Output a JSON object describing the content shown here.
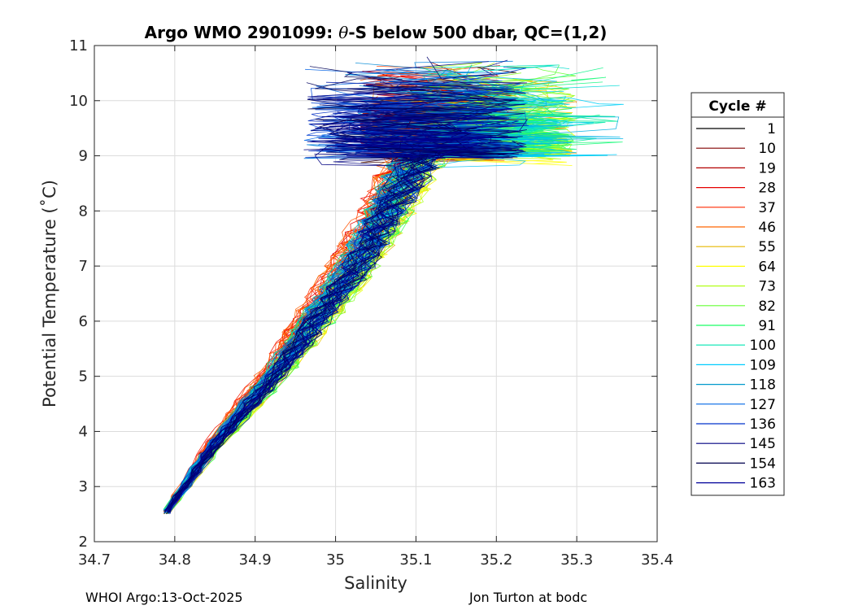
{
  "chart_data": {
    "type": "line",
    "title_prefix": "Argo WMO 2901099: ",
    "title_theta": "θ",
    "title_suffix": "-S below 500 dbar,  QC=(1,2)",
    "xlabel": "Salinity",
    "ylabel": "Potential Temperature (˚C)",
    "xlim": [
      34.7,
      35.4
    ],
    "ylim": [
      2,
      11
    ],
    "xticks": [
      34.7,
      34.8,
      34.9,
      35,
      35.1,
      35.2,
      35.3,
      35.4
    ],
    "xtick_labels": [
      "34.7",
      "34.8",
      "34.9",
      "35",
      "35.1",
      "35.2",
      "35.3",
      "35.4"
    ],
    "yticks": [
      2,
      3,
      4,
      5,
      6,
      7,
      8,
      9,
      10,
      11
    ],
    "ytick_labels": [
      "2",
      "3",
      "4",
      "5",
      "6",
      "7",
      "8",
      "9",
      "10",
      "11"
    ],
    "grid": true,
    "legend": {
      "title": "Cycle #",
      "placement": "right",
      "entries": [
        {
          "label": "1",
          "color": "#000000"
        },
        {
          "label": "10",
          "color": "#800000"
        },
        {
          "label": "19",
          "color": "#b30000"
        },
        {
          "label": "28",
          "color": "#e60000"
        },
        {
          "label": "37",
          "color": "#ff2a00"
        },
        {
          "label": "46",
          "color": "#ff6600"
        },
        {
          "label": "55",
          "color": "#e6b800"
        },
        {
          "label": "64",
          "color": "#ffff00"
        },
        {
          "label": "73",
          "color": "#b3ff1a"
        },
        {
          "label": "82",
          "color": "#66ff33"
        },
        {
          "label": "91",
          "color": "#1aff66"
        },
        {
          "label": "100",
          "color": "#00e6b3"
        },
        {
          "label": "109",
          "color": "#00ccff"
        },
        {
          "label": "118",
          "color": "#0099cc"
        },
        {
          "label": "127",
          "color": "#0066e6"
        },
        {
          "label": "136",
          "color": "#0033cc"
        },
        {
          "label": "145",
          "color": "#000080"
        },
        {
          "label": "154",
          "color": "#00004d"
        },
        {
          "label": "163",
          "color": "#000099"
        }
      ]
    },
    "series_template": {
      "deep_point": [
        34.79,
        2.55
      ],
      "mid_points": [
        [
          34.85,
          3.8
        ],
        [
          34.92,
          5.0
        ],
        [
          34.97,
          6.0
        ],
        [
          35.02,
          7.0
        ],
        [
          35.06,
          8.0
        ],
        [
          35.1,
          9.0
        ]
      ],
      "upper_range_salinity": [
        34.95,
        35.36
      ],
      "upper_range_temp": [
        9.0,
        10.8
      ],
      "num_profiles": 163
    }
  },
  "footer": {
    "left": "WHOI Argo:13-Oct-2025",
    "right": "Jon Turton at bodc"
  }
}
